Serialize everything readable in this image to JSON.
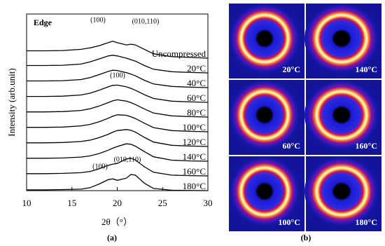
{
  "chart_data": {
    "type": "line",
    "title": "Edge",
    "xlabel": "2θ（°）",
    "ylabel": "Intensity (arb.unit)",
    "xlim": [
      10,
      30
    ],
    "xticks": [
      10,
      15,
      20,
      25,
      30
    ],
    "ylim": [
      0,
      12
    ],
    "x": [
      10,
      12,
      14,
      16,
      17,
      18,
      19,
      19.5,
      20,
      21,
      21.5,
      22,
      23,
      24,
      26,
      28,
      30
    ],
    "series": [
      {
        "name": "Uncompressed",
        "color": "#000000",
        "values": [
          0.5,
          0.5,
          0.52,
          0.6,
          0.7,
          0.85,
          1.05,
          1.15,
          1.05,
          0.9,
          0.95,
          0.9,
          0.6,
          0.3,
          0.1,
          0.05,
          0.0
        ]
      },
      {
        "name": "20°C",
        "color": "#000000",
        "values": [
          0.5,
          0.5,
          0.52,
          0.6,
          0.75,
          0.95,
          1.15,
          1.2,
          1.15,
          1.0,
          0.9,
          0.8,
          0.5,
          0.25,
          0.08,
          0.03,
          0.0
        ]
      },
      {
        "name": "40°C",
        "color": "#000000",
        "values": [
          0.45,
          0.45,
          0.47,
          0.55,
          0.68,
          0.88,
          1.1,
          1.18,
          1.16,
          1.02,
          0.92,
          0.8,
          0.5,
          0.25,
          0.08,
          0.03,
          0.0
        ]
      },
      {
        "name": "60°C",
        "color": "#000000",
        "values": [
          0.4,
          0.4,
          0.42,
          0.5,
          0.62,
          0.82,
          1.05,
          1.15,
          1.17,
          1.05,
          0.95,
          0.82,
          0.52,
          0.26,
          0.08,
          0.03,
          0.0
        ]
      },
      {
        "name": "80°C",
        "color": "#000000",
        "values": [
          0.35,
          0.35,
          0.37,
          0.45,
          0.56,
          0.75,
          0.98,
          1.1,
          1.17,
          1.08,
          0.98,
          0.85,
          0.55,
          0.27,
          0.08,
          0.03,
          0.0
        ]
      },
      {
        "name": "100°C",
        "color": "#000000",
        "values": [
          0.3,
          0.3,
          0.32,
          0.4,
          0.5,
          0.68,
          0.92,
          1.05,
          1.15,
          1.12,
          1.02,
          0.9,
          0.58,
          0.28,
          0.08,
          0.03,
          0.0
        ]
      },
      {
        "name": "120°C",
        "color": "#000000",
        "values": [
          0.25,
          0.25,
          0.27,
          0.34,
          0.43,
          0.6,
          0.83,
          0.97,
          1.08,
          1.15,
          1.1,
          0.98,
          0.62,
          0.3,
          0.08,
          0.03,
          0.0
        ]
      },
      {
        "name": "140°C",
        "color": "#000000",
        "values": [
          0.2,
          0.2,
          0.22,
          0.28,
          0.36,
          0.52,
          0.75,
          0.88,
          1.0,
          1.18,
          1.15,
          1.02,
          0.65,
          0.3,
          0.07,
          0.02,
          0.0
        ]
      },
      {
        "name": "160°C",
        "color": "#000000",
        "values": [
          0.15,
          0.15,
          0.17,
          0.22,
          0.3,
          0.48,
          0.72,
          0.8,
          0.85,
          1.15,
          1.2,
          1.08,
          0.62,
          0.25,
          0.05,
          0.02,
          0.0
        ]
      },
      {
        "name": "180°C",
        "color": "#000000",
        "values": [
          0.05,
          0.05,
          0.07,
          0.1,
          0.2,
          0.45,
          0.75,
          0.8,
          0.7,
          0.85,
          1.1,
          1.05,
          0.5,
          0.15,
          0.03,
          0.01,
          0.0
        ]
      }
    ],
    "annotations": [
      "(100)",
      "(010,110)",
      "(100)",
      "(100)",
      "(010,110)"
    ]
  },
  "panel_labels": [
    "(a)",
    "(b)"
  ],
  "patterns": [
    {
      "label": "20°C"
    },
    {
      "label": "140°C"
    },
    {
      "label": "60°C"
    },
    {
      "label": "160°C"
    },
    {
      "label": "100°C"
    },
    {
      "label": "180°C"
    }
  ]
}
